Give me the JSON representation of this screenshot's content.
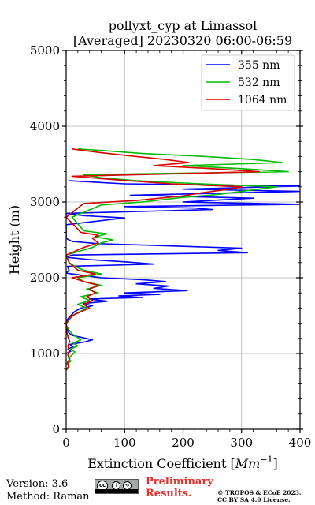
{
  "chart_data": {
    "type": "line",
    "title_line1": "pollyxt_cyp at Limassol",
    "title_line2": "[Averaged] 20230320 06:00-06:59",
    "xlabel": "Extinction Coefficient [Mm⁻¹]",
    "xlabel_main": "Extinction Coefficient [",
    "xlabel_unit": "Mm",
    "xlabel_exp": "−1",
    "xlabel_close": "]",
    "ylabel": "Height (m)",
    "xlim": [
      0,
      400
    ],
    "ylim": [
      0,
      5000
    ],
    "xticks": [
      0,
      100,
      200,
      300,
      400
    ],
    "yticks": [
      0,
      1000,
      2000,
      3000,
      4000,
      5000
    ],
    "xtick_labels": [
      "0",
      "100",
      "200",
      "300",
      "400"
    ],
    "ytick_labels": [
      "0",
      "1000",
      "2000",
      "3000",
      "4000",
      "5000"
    ],
    "grid": true,
    "legend_position": "top-right",
    "series": [
      {
        "name": "355 nm",
        "color": "#0000ff",
        "points": [
          [
            0,
            1000
          ],
          [
            8,
            1030
          ],
          [
            3,
            1060
          ],
          [
            12,
            1090
          ],
          [
            6,
            1120
          ],
          [
            30,
            1150
          ],
          [
            45,
            1180
          ],
          [
            28,
            1210
          ],
          [
            10,
            1240
          ],
          [
            5,
            1270
          ],
          [
            3,
            1300
          ],
          [
            1,
            1350
          ],
          [
            0,
            1400
          ],
          [
            2,
            1450
          ],
          [
            8,
            1500
          ],
          [
            14,
            1550
          ],
          [
            25,
            1600
          ],
          [
            45,
            1630
          ],
          [
            30,
            1660
          ],
          [
            70,
            1690
          ],
          [
            40,
            1720
          ],
          [
            130,
            1740
          ],
          [
            90,
            1760
          ],
          [
            160,
            1780
          ],
          [
            100,
            1800
          ],
          [
            207,
            1830
          ],
          [
            150,
            1860
          ],
          [
            175,
            1890
          ],
          [
            120,
            1920
          ],
          [
            170,
            1950
          ],
          [
            130,
            1975
          ],
          [
            60,
            2000
          ],
          [
            30,
            2030
          ],
          [
            0,
            2060
          ],
          [
            5,
            2100
          ],
          [
            2,
            2150
          ],
          [
            150,
            2180
          ],
          [
            100,
            2210
          ],
          [
            40,
            2240
          ],
          [
            0,
            2270
          ],
          [
            10,
            2300
          ],
          [
            310,
            2330
          ],
          [
            260,
            2360
          ],
          [
            300,
            2390
          ],
          [
            180,
            2420
          ],
          [
            55,
            2450
          ],
          [
            10,
            2480
          ],
          [
            0,
            2520
          ],
          [
            0,
            2600
          ],
          [
            0,
            2700
          ],
          [
            100,
            2790
          ],
          [
            30,
            2820
          ],
          [
            0,
            2850
          ],
          [
            150,
            2880
          ],
          [
            250,
            2900
          ],
          [
            220,
            2920
          ],
          [
            100,
            2940
          ],
          [
            400,
            2970
          ],
          [
            200,
            3000
          ],
          [
            320,
            3050
          ],
          [
            110,
            3090
          ],
          [
            400,
            3140
          ],
          [
            200,
            3170
          ],
          [
            400,
            3210
          ],
          [
            100,
            3240
          ],
          [
            5,
            3280
          ]
        ]
      },
      {
        "name": "532 nm",
        "color": "#00bb00",
        "points": [
          [
            0,
            780
          ],
          [
            5,
            820
          ],
          [
            2,
            860
          ],
          [
            8,
            900
          ],
          [
            4,
            940
          ],
          [
            10,
            980
          ],
          [
            15,
            1020
          ],
          [
            8,
            1060
          ],
          [
            20,
            1100
          ],
          [
            12,
            1140
          ],
          [
            25,
            1180
          ],
          [
            18,
            1220
          ],
          [
            10,
            1260
          ],
          [
            4,
            1320
          ],
          [
            0,
            1380
          ],
          [
            5,
            1450
          ],
          [
            15,
            1520
          ],
          [
            35,
            1600
          ],
          [
            20,
            1650
          ],
          [
            40,
            1700
          ],
          [
            25,
            1750
          ],
          [
            55,
            1800
          ],
          [
            35,
            1850
          ],
          [
            60,
            1900
          ],
          [
            30,
            1950
          ],
          [
            20,
            2000
          ],
          [
            60,
            2050
          ],
          [
            30,
            2100
          ],
          [
            15,
            2150
          ],
          [
            5,
            2200
          ],
          [
            0,
            2300
          ],
          [
            45,
            2400
          ],
          [
            60,
            2460
          ],
          [
            80,
            2500
          ],
          [
            50,
            2540
          ],
          [
            70,
            2580
          ],
          [
            30,
            2620
          ],
          [
            10,
            2800
          ],
          [
            60,
            2960
          ],
          [
            130,
            3000
          ],
          [
            200,
            3060
          ],
          [
            260,
            3100
          ],
          [
            310,
            3150
          ],
          [
            360,
            3200
          ],
          [
            230,
            3240
          ],
          [
            120,
            3280
          ],
          [
            60,
            3320
          ],
          [
            30,
            3360
          ],
          [
            380,
            3400
          ],
          [
            300,
            3440
          ],
          [
            200,
            3480
          ],
          [
            370,
            3520
          ],
          [
            320,
            3560
          ],
          [
            240,
            3600
          ],
          [
            130,
            3640
          ],
          [
            60,
            3680
          ],
          [
            20,
            3700
          ]
        ]
      },
      {
        "name": "1064 nm",
        "color": "#dd0000",
        "points": [
          [
            0,
            780
          ],
          [
            4,
            830
          ],
          [
            2,
            880
          ],
          [
            6,
            930
          ],
          [
            3,
            980
          ],
          [
            5,
            1040
          ],
          [
            3,
            1100
          ],
          [
            6,
            1160
          ],
          [
            3,
            1220
          ],
          [
            1,
            1300
          ],
          [
            0,
            1400
          ],
          [
            10,
            1500
          ],
          [
            25,
            1550
          ],
          [
            40,
            1600
          ],
          [
            30,
            1650
          ],
          [
            45,
            1700
          ],
          [
            35,
            1750
          ],
          [
            50,
            1800
          ],
          [
            40,
            1850
          ],
          [
            55,
            1900
          ],
          [
            30,
            1950
          ],
          [
            10,
            2000
          ],
          [
            50,
            2050
          ],
          [
            20,
            2100
          ],
          [
            5,
            2200
          ],
          [
            0,
            2300
          ],
          [
            30,
            2400
          ],
          [
            55,
            2460
          ],
          [
            45,
            2520
          ],
          [
            55,
            2560
          ],
          [
            25,
            2600
          ],
          [
            0,
            2800
          ],
          [
            30,
            2980
          ],
          [
            120,
            3020
          ],
          [
            200,
            3080
          ],
          [
            230,
            3120
          ],
          [
            280,
            3170
          ],
          [
            300,
            3200
          ],
          [
            180,
            3240
          ],
          [
            90,
            3290
          ],
          [
            10,
            3340
          ],
          [
            330,
            3400
          ],
          [
            250,
            3440
          ],
          [
            150,
            3480
          ],
          [
            210,
            3520
          ],
          [
            170,
            3560
          ],
          [
            120,
            3600
          ],
          [
            60,
            3650
          ],
          [
            10,
            3700
          ]
        ]
      }
    ]
  },
  "footer": {
    "version": "Version: 3.6",
    "method": "Method: Raman",
    "license_badge_left": "cc",
    "license_badge_by": "i",
    "license_badge_sa": "⟲",
    "preliminary_line1": "Preliminary",
    "preliminary_line2": "Results.",
    "copyright_line1": "© TROPOS & ECoE 2023.",
    "copyright_line2": "CC BY SA 4.0 License."
  }
}
